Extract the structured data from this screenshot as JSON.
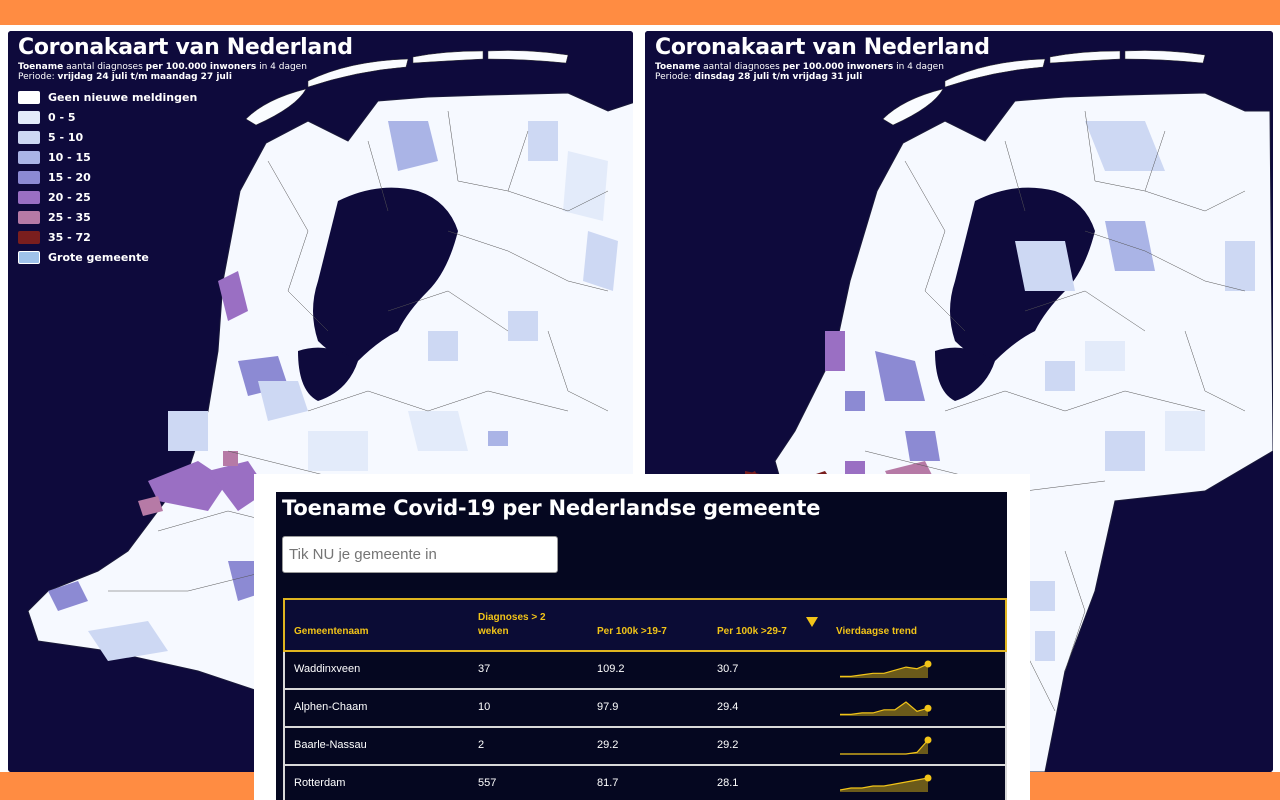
{
  "maps": [
    {
      "title": "Coronakaart van Nederland",
      "subtitle_bold": "Toename",
      "subtitle_mid": "aantal diagnoses",
      "subtitle_bold2": "per 100.000 inwoners",
      "subtitle_end": "in 4 dagen",
      "period_label": "Periode:",
      "period_value": "vrijdag 24 juli t/m maandag 27 juli"
    },
    {
      "title": "Coronakaart van Nederland",
      "subtitle_bold": "Toename",
      "subtitle_mid": "aantal diagnoses",
      "subtitle_bold2": "per 100.000 inwoners",
      "subtitle_end": "in 4 dagen",
      "period_label": "Periode:",
      "period_value": "dinsdag 28 juli t/m vrijdag 31 juli"
    }
  ],
  "legend": [
    {
      "label": "Geen nieuwe meldingen",
      "color": "#ffffff"
    },
    {
      "label": "0 - 5",
      "color": "#e3ebfa"
    },
    {
      "label": "5 - 10",
      "color": "#cdd8f3"
    },
    {
      "label": "10 - 15",
      "color": "#aab4e6"
    },
    {
      "label": "15 - 20",
      "color": "#8c8ad3"
    },
    {
      "label": "20 - 25",
      "color": "#9a6fc3"
    },
    {
      "label": "25 - 35",
      "color": "#b67aa6"
    },
    {
      "label": "35 - 72",
      "color": "#7a1e1e"
    },
    {
      "label": "Grote gemeente",
      "color": "#9fc2ea"
    }
  ],
  "colors": {
    "map_background": "#0e0a3c",
    "accent": "#f2c418",
    "frame_orange": "#ff8c42",
    "table_background": "#050720"
  },
  "table_card": {
    "title": "Toename Covid-19 per Nederlandse gemeente",
    "search_placeholder": "Tik NU je gemeente in",
    "headers": {
      "name": "Gemeentenaam",
      "diagnoses_line1": "Diagnoses > 2",
      "diagnoses_line2": "weken",
      "per100k_19": "Per 100k >19-7",
      "per100k_29": "Per 100k >29-7",
      "trend": "Vierdaagse trend"
    },
    "sort_icon": "sort-descending-triangle-icon",
    "rows": [
      {
        "name": "Waddinxveen",
        "diagnoses": "37",
        "per100k_19": "109.2",
        "per100k_29": "30.7",
        "trend": [
          1,
          1,
          2,
          3,
          3,
          5,
          7,
          6,
          9
        ]
      },
      {
        "name": "Alphen-Chaam",
        "diagnoses": "10",
        "per100k_19": "97.9",
        "per100k_29": "29.4",
        "trend": [
          1,
          1,
          2,
          2,
          4,
          4,
          9,
          3,
          5
        ]
      },
      {
        "name": "Baarle-Nassau",
        "diagnoses": "2",
        "per100k_19": "29.2",
        "per100k_29": "29.2",
        "trend": [
          0,
          0,
          0,
          0,
          0,
          0,
          0,
          1,
          9
        ]
      },
      {
        "name": "Rotterdam",
        "diagnoses": "557",
        "per100k_19": "81.7",
        "per100k_29": "28.1",
        "trend": [
          1,
          2,
          2,
          3,
          3,
          4,
          5,
          6,
          7
        ]
      }
    ]
  }
}
